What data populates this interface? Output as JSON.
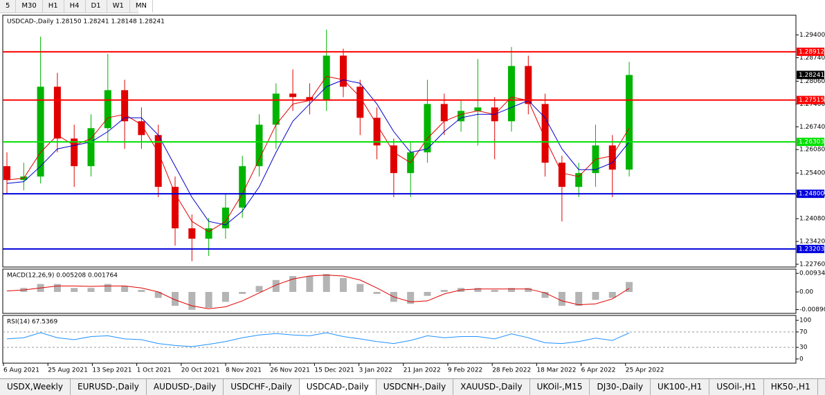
{
  "toolbar": {
    "buttons": [
      "5",
      "M30",
      "H1",
      "H4",
      "D1",
      "W1",
      "MN"
    ]
  },
  "tabs": {
    "items": [
      "USDX,Weekly",
      "EURUSD-,Daily",
      "AUDUSD-,Daily",
      "USDCHF-,Daily",
      "USDCAD-,Daily",
      "USDCNH-,Daily",
      "XAUUSD-,Daily",
      "UKOil-,M15",
      "DJ30-,Daily",
      "UK100-,H1",
      "USOil-,H1",
      "HK50-,H1"
    ],
    "active": "USDCAD-,Daily"
  },
  "chart_data": [
    {
      "type": "candlestick",
      "title": "USDCAD-,Daily  1.28150 1.28241 1.28148 1.28241",
      "xticks": [
        "6 Aug 2021",
        "25 Aug 2021",
        "13 Sep 2021",
        "1 Oct 2021",
        "20 Oct 2021",
        "8 Nov 2021",
        "26 Nov 2021",
        "15 Dec 2021",
        "3 Jan 2022",
        "21 Jan 2022",
        "9 Feb 2022",
        "28 Feb 2022",
        "18 Mar 2022",
        "6 Apr 2022",
        "25 Apr 2022"
      ],
      "open": [
        1.256,
        1.252,
        1.253,
        1.279,
        1.264,
        1.256,
        1.267,
        1.278,
        1.269,
        1.265,
        1.25,
        1.238,
        1.235,
        1.238,
        1.244,
        1.256,
        1.268,
        1.277,
        1.276,
        1.275,
        1.288,
        1.279,
        1.27,
        1.262,
        1.254,
        1.26,
        1.274,
        1.269,
        1.272,
        1.273,
        1.269,
        1.285,
        1.274,
        1.257,
        1.25,
        1.254,
        1.262,
        1.255
      ],
      "high": [
        1.26,
        1.257,
        1.2935,
        1.283,
        1.268,
        1.271,
        1.2885,
        1.281,
        1.273,
        1.268,
        1.253,
        1.242,
        1.241,
        1.248,
        1.259,
        1.271,
        1.28,
        1.284,
        1.28,
        1.2955,
        1.29,
        1.281,
        1.273,
        1.264,
        1.263,
        1.281,
        1.277,
        1.275,
        1.287,
        1.276,
        1.2905,
        1.288,
        1.277,
        1.259,
        1.257,
        1.268,
        1.265,
        1.2862
      ],
      "low": [
        1.248,
        1.249,
        1.251,
        1.26,
        1.25,
        1.253,
        1.263,
        1.261,
        1.261,
        1.247,
        1.233,
        1.2285,
        1.23,
        1.235,
        1.241,
        1.253,
        1.261,
        1.272,
        1.271,
        1.272,
        1.276,
        1.265,
        1.258,
        1.247,
        1.247,
        1.257,
        1.265,
        1.266,
        1.262,
        1.258,
        1.266,
        1.271,
        1.253,
        1.24,
        1.247,
        1.25,
        1.247,
        1.253
      ],
      "close": [
        1.252,
        1.253,
        1.279,
        1.264,
        1.256,
        1.267,
        1.278,
        1.269,
        1.265,
        1.25,
        1.238,
        1.235,
        1.238,
        1.244,
        1.256,
        1.268,
        1.277,
        1.276,
        1.275,
        1.288,
        1.279,
        1.27,
        1.262,
        1.254,
        1.26,
        1.274,
        1.269,
        1.272,
        1.273,
        1.269,
        1.285,
        1.274,
        1.257,
        1.25,
        1.254,
        1.262,
        1.255,
        1.2824
      ],
      "up_color": "#00b400",
      "down_color": "#e00000",
      "series": [
        {
          "color": "#e00000",
          "values": [
            1.252,
            1.2525,
            1.26,
            1.265,
            1.262,
            1.264,
            1.27,
            1.271,
            1.268,
            1.26,
            1.248,
            1.24,
            1.237,
            1.24,
            1.248,
            1.258,
            1.268,
            1.274,
            1.275,
            1.282,
            1.281,
            1.276,
            1.268,
            1.26,
            1.257,
            1.264,
            1.269,
            1.271,
            1.272,
            1.271,
            1.276,
            1.275,
            1.264,
            1.254,
            1.253,
            1.258,
            1.259,
            1.267
          ]
        },
        {
          "color": "#0000cc",
          "values": [
            1.251,
            1.2515,
            1.256,
            1.261,
            1.262,
            1.263,
            1.266,
            1.27,
            1.27,
            1.265,
            1.256,
            1.247,
            1.24,
            1.239,
            1.243,
            1.25,
            1.26,
            1.269,
            1.274,
            1.279,
            1.281,
            1.28,
            1.274,
            1.266,
            1.26,
            1.261,
            1.266,
            1.27,
            1.271,
            1.271,
            1.273,
            1.275,
            1.27,
            1.261,
            1.255,
            1.255,
            1.257,
            1.263
          ]
        }
      ],
      "hlines": [
        {
          "value": 1.28912,
          "label": "1.28912",
          "color": "#ff0000"
        },
        {
          "value": 1.27515,
          "label": "1.27515",
          "color": "#ff0000"
        },
        {
          "value": 1.26303,
          "label": "1.26303",
          "color": "#00e000"
        },
        {
          "value": 1.248,
          "label": "1.24800",
          "color": "#0000dd"
        },
        {
          "value": 1.23203,
          "label": "1.23203",
          "color": "#0000dd"
        }
      ],
      "last_price": {
        "value": 1.28241,
        "label": "1.28241"
      },
      "ylim": [
        1.2268,
        1.2997
      ],
      "yticks": [
        {
          "value": 1.294,
          "label": "1.29400"
        },
        {
          "value": 1.2874,
          "label": "1.28740"
        },
        {
          "value": 1.2806,
          "label": "1.28060"
        },
        {
          "value": 1.274,
          "label": "1.27400"
        },
        {
          "value": 1.2674,
          "label": "1.26740"
        },
        {
          "value": 1.2608,
          "label": "1.26080"
        },
        {
          "value": 1.254,
          "label": "1.25400"
        },
        {
          "value": 1.2474,
          "label": "1.24740"
        },
        {
          "value": 1.2408,
          "label": "1.24080"
        },
        {
          "value": 1.2342,
          "label": "1.23420"
        },
        {
          "value": 1.2276,
          "label": "1.22760"
        }
      ]
    },
    {
      "type": "macd",
      "title": "MACD(12,26,9) 0.005208 0.001764",
      "series": [
        {
          "color": "#b4b4b4",
          "values": [
            0.0,
            0.002,
            0.004,
            0.004,
            0.002,
            0.002,
            0.004,
            0.003,
            0.001,
            -0.003,
            -0.007,
            -0.009,
            -0.008,
            -0.005,
            -0.001,
            0.003,
            0.006,
            0.008,
            0.008,
            0.009,
            0.007,
            0.004,
            -0.001,
            -0.005,
            -0.006,
            -0.002,
            0.001,
            0.002,
            0.002,
            0.001,
            0.002,
            0.002,
            -0.003,
            -0.007,
            -0.007,
            -0.004,
            -0.003,
            0.005
          ]
        },
        {
          "color": "#e00000",
          "values": [
            0.0005,
            0.001,
            0.002,
            0.003,
            0.003,
            0.0028,
            0.003,
            0.003,
            0.002,
            0.0,
            -0.004,
            -0.007,
            -0.0085,
            -0.0075,
            -0.0045,
            -0.0005,
            0.0035,
            0.0065,
            0.008,
            0.0085,
            0.008,
            0.006,
            0.002,
            -0.0025,
            -0.005,
            -0.0045,
            -0.001,
            0.001,
            0.0015,
            0.0015,
            0.0015,
            0.0015,
            -0.0005,
            -0.0045,
            -0.0065,
            -0.006,
            -0.0035,
            0.0018
          ]
        }
      ],
      "ylim": [
        -0.0108,
        0.0115
      ],
      "yticks": [
        0.009345,
        {
          "value": 0,
          "label": "0.00"
        },
        -0.008904
      ]
    },
    {
      "type": "rsi",
      "title": "RSI(14) 67.5369",
      "series": [
        {
          "color": "#1e90ff",
          "values": [
            52,
            55,
            68,
            55,
            50,
            58,
            60,
            52,
            50,
            40,
            35,
            32,
            38,
            45,
            55,
            62,
            66,
            62,
            60,
            68,
            58,
            52,
            45,
            40,
            48,
            60,
            55,
            58,
            58,
            52,
            65,
            55,
            42,
            40,
            45,
            54,
            48,
            67.5
          ]
        }
      ],
      "dashed_levels": [
        70,
        30
      ],
      "ylim": [
        -10.9,
        112.7
      ],
      "yticks": [
        100,
        70,
        30,
        0
      ]
    }
  ]
}
